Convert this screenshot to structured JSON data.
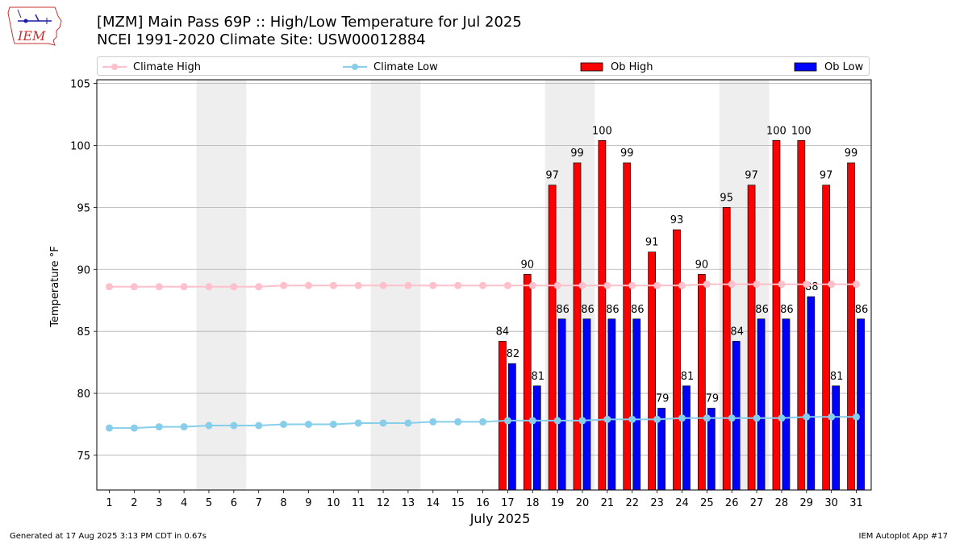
{
  "header": {
    "title_line1": "[MZM] Main Pass 69P :: High/Low Temperature for Jul 2025",
    "title_line2": "NCEI 1991-2020 Climate Site: USW00012884"
  },
  "logo": {
    "text": "IEM",
    "icon": "iowa-state-outline-logo"
  },
  "footer": {
    "left": "Generated at 17 Aug 2025 3:13 PM CDT in 0.67s",
    "right": "IEM Autoplot App #17"
  },
  "colors": {
    "climate_high": "#ffc0cb",
    "climate_low": "#87ceeb",
    "ob_high": "#ff0000",
    "ob_low": "#0000ff",
    "weekend_shade": "#eeeeee",
    "grid": "#b0b0b0"
  },
  "chart_data": {
    "type": "bar",
    "xlabel": "July 2025",
    "ylabel": "Temperature °F",
    "ylim": [
      72.2,
      105.3
    ],
    "yticks": [
      75,
      80,
      85,
      90,
      95,
      100,
      105
    ],
    "grid": "horizontal",
    "legend_placement": "top",
    "categories": [
      "1",
      "2",
      "3",
      "4",
      "5",
      "6",
      "7",
      "8",
      "9",
      "10",
      "11",
      "12",
      "13",
      "14",
      "15",
      "16",
      "17",
      "18",
      "19",
      "20",
      "21",
      "22",
      "23",
      "24",
      "25",
      "26",
      "27",
      "28",
      "29",
      "30",
      "31"
    ],
    "shaded_days": [
      [
        5,
        6
      ],
      [
        12,
        13
      ],
      [
        19,
        20
      ],
      [
        26,
        27
      ]
    ],
    "series": [
      {
        "name": "Climate High",
        "kind": "line",
        "values": [
          88.6,
          88.6,
          88.6,
          88.6,
          88.6,
          88.6,
          88.6,
          88.7,
          88.7,
          88.7,
          88.7,
          88.7,
          88.7,
          88.7,
          88.7,
          88.7,
          88.7,
          88.7,
          88.7,
          88.7,
          88.7,
          88.7,
          88.7,
          88.7,
          88.8,
          88.8,
          88.8,
          88.8,
          88.8,
          88.8,
          88.8
        ]
      },
      {
        "name": "Climate Low",
        "kind": "line",
        "values": [
          77.2,
          77.2,
          77.3,
          77.3,
          77.4,
          77.4,
          77.4,
          77.5,
          77.5,
          77.5,
          77.6,
          77.6,
          77.6,
          77.7,
          77.7,
          77.7,
          77.8,
          77.8,
          77.8,
          77.8,
          77.9,
          77.9,
          77.9,
          78.0,
          78.0,
          78.0,
          78.0,
          78.0,
          78.1,
          78.1,
          78.1
        ]
      },
      {
        "name": "Ob High",
        "kind": "bar",
        "values": [
          null,
          null,
          null,
          null,
          null,
          null,
          null,
          null,
          null,
          null,
          null,
          null,
          null,
          null,
          null,
          null,
          84.2,
          89.6,
          96.8,
          98.6,
          100.4,
          98.6,
          91.4,
          93.2,
          89.6,
          95.0,
          96.8,
          100.4,
          100.4,
          96.8,
          98.6
        ],
        "labels": [
          "",
          "",
          "",
          "",
          "",
          "",
          "",
          "",
          "",
          "",
          "",
          "",
          "",
          "",
          "",
          "",
          "84",
          "90",
          "97",
          "99",
          "100",
          "99",
          "91",
          "93",
          "90",
          "95",
          "97",
          "100",
          "100",
          "97",
          "99"
        ]
      },
      {
        "name": "Ob Low",
        "kind": "bar",
        "values": [
          null,
          null,
          null,
          null,
          null,
          null,
          null,
          null,
          null,
          null,
          null,
          null,
          null,
          null,
          null,
          null,
          82.4,
          80.6,
          86.0,
          86.0,
          86.0,
          86.0,
          78.8,
          80.6,
          78.8,
          84.2,
          86.0,
          86.0,
          87.8,
          80.6,
          86.0
        ],
        "labels": [
          "",
          "",
          "",
          "",
          "",
          "",
          "",
          "",
          "",
          "",
          "",
          "",
          "",
          "",
          "",
          "",
          "82",
          "81",
          "86",
          "86",
          "86",
          "86",
          "79",
          "81",
          "79",
          "84",
          "86",
          "86",
          "88",
          "81",
          "86"
        ]
      }
    ]
  }
}
